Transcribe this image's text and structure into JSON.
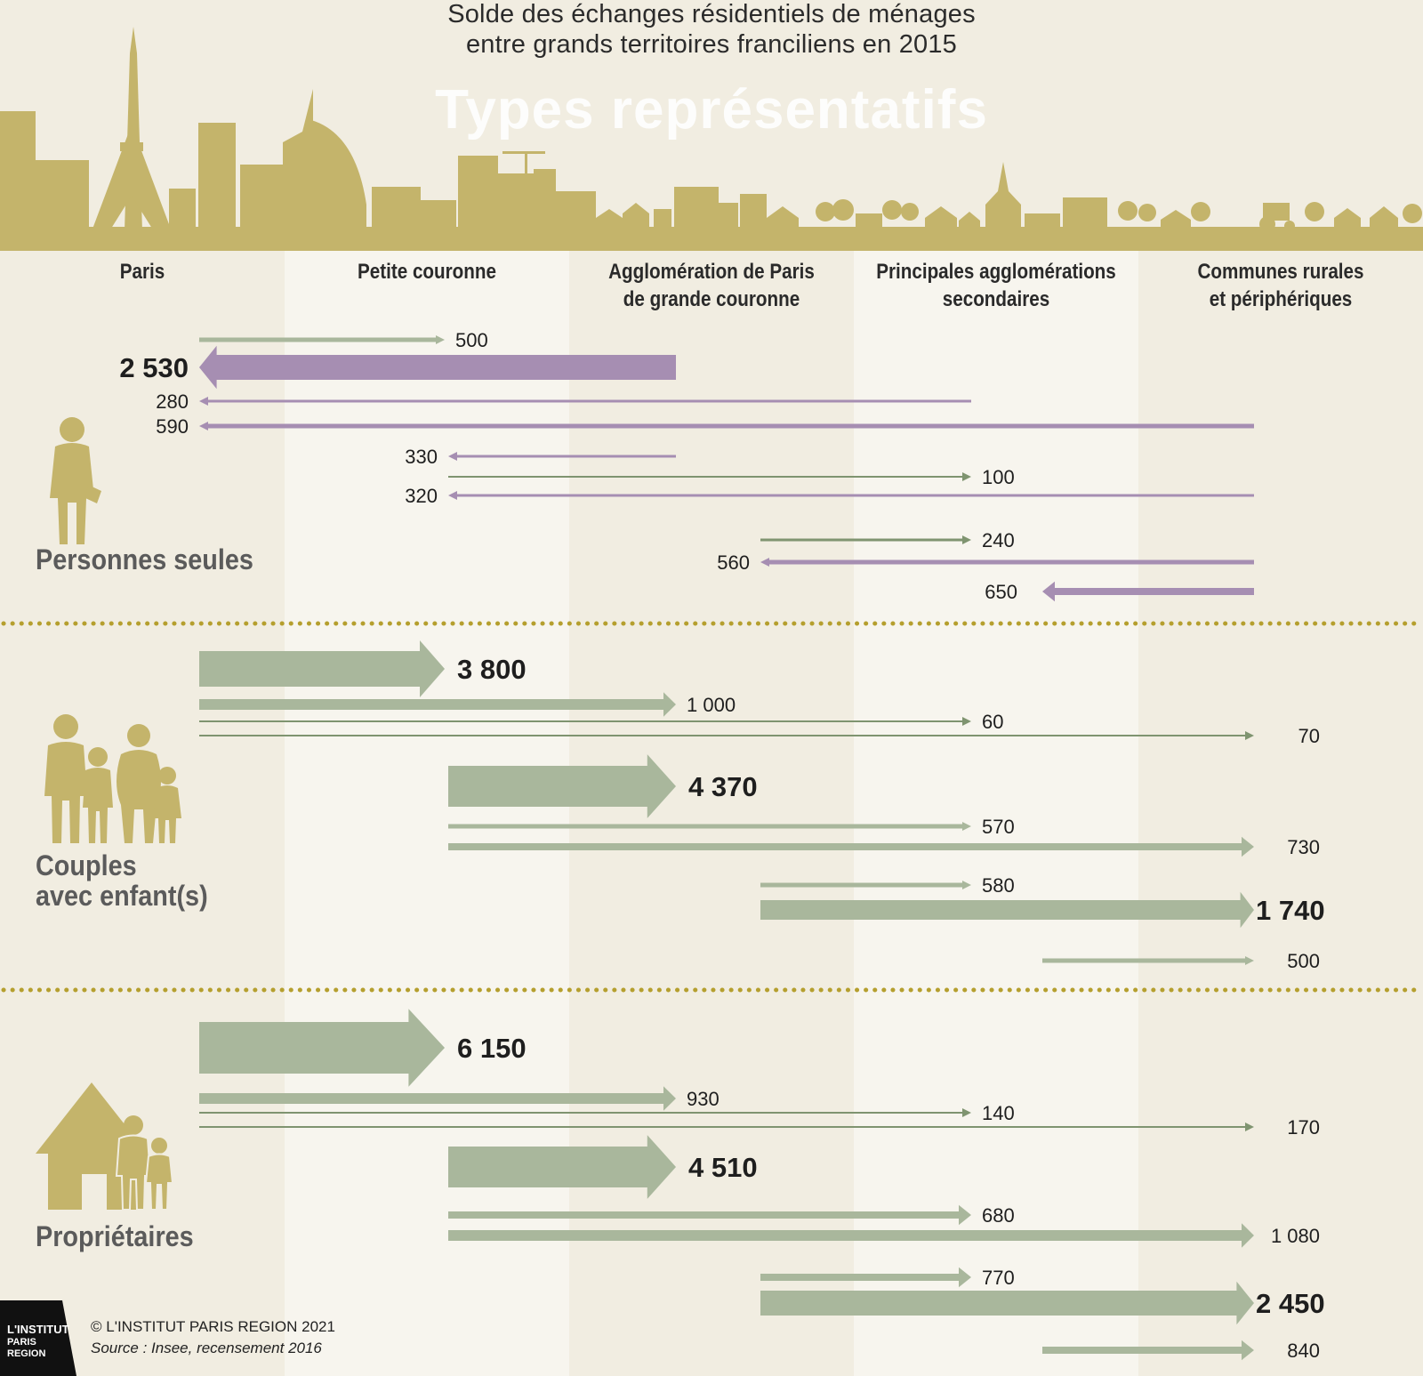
{
  "header": {
    "title_line1": "Solde des échanges résidentiels de ménages",
    "title_line2": "entre grands territoires franciliens en 2015",
    "big_title": "Types représentatifs"
  },
  "columns": [
    {
      "line1": "Paris",
      "line2": ""
    },
    {
      "line1": "Petite couronne",
      "line2": ""
    },
    {
      "line1": "Agglomération de Paris",
      "line2": "de grande couronne"
    },
    {
      "line1": "Principales agglomérations",
      "line2": "secondaires"
    },
    {
      "line1": "Communes rurales",
      "line2": "et périphériques"
    }
  ],
  "categories": {
    "seules": "Personnes seules",
    "couples_1": "Couples",
    "couples_2": "avec enfant(s)",
    "proprietaires": "Propriétaires"
  },
  "footer": {
    "copyright": "© L'INSTITUT PARIS REGION 2021",
    "source": "Source : Insee, recensement 2016",
    "logo_line1": "L'INSTITUT",
    "logo_line2": "PARIS",
    "logo_line3": "REGION"
  },
  "colors": {
    "background": "#f1ede1",
    "band_light": "#f7f5ee",
    "skyline": "#c4b46b",
    "arrow_green": "#a9b79c",
    "arrow_green_thin": "#7f9470",
    "arrow_purple": "#a68eb2",
    "separator": "#b59f2e"
  },
  "chart_data": {
    "type": "flow-arrows",
    "territories": [
      "Paris",
      "Petite couronne",
      "Agglomération de Paris de grande couronne",
      "Principales agglomérations secondaires",
      "Communes rurales et périphériques"
    ],
    "groups": [
      {
        "name": "Personnes seules",
        "flows": [
          {
            "from": 0,
            "to": 1,
            "value": 500,
            "label": "500"
          },
          {
            "from": 2,
            "to": 0,
            "value": 2530,
            "label": "2 530"
          },
          {
            "from": 3,
            "to": 0,
            "value": 280,
            "label": "280"
          },
          {
            "from": 4,
            "to": 0,
            "value": 590,
            "label": "590"
          },
          {
            "from": 2,
            "to": 1,
            "value": 330,
            "label": "330"
          },
          {
            "from": 1,
            "to": 3,
            "value": 100,
            "label": "100"
          },
          {
            "from": 4,
            "to": 1,
            "value": 320,
            "label": "320"
          },
          {
            "from": 2,
            "to": 3,
            "value": 240,
            "label": "240"
          },
          {
            "from": 4,
            "to": 2,
            "value": 560,
            "label": "560"
          },
          {
            "from": 4,
            "to": 3,
            "value": 650,
            "label": "650"
          }
        ]
      },
      {
        "name": "Couples avec enfant(s)",
        "flows": [
          {
            "from": 0,
            "to": 1,
            "value": 3800,
            "label": "3 800"
          },
          {
            "from": 0,
            "to": 2,
            "value": 1000,
            "label": "1 000"
          },
          {
            "from": 0,
            "to": 3,
            "value": 60,
            "label": "60"
          },
          {
            "from": 0,
            "to": 4,
            "value": 70,
            "label": "70"
          },
          {
            "from": 1,
            "to": 2,
            "value": 4370,
            "label": "4 370"
          },
          {
            "from": 1,
            "to": 3,
            "value": 570,
            "label": "570"
          },
          {
            "from": 1,
            "to": 4,
            "value": 730,
            "label": "730"
          },
          {
            "from": 2,
            "to": 3,
            "value": 580,
            "label": "580"
          },
          {
            "from": 2,
            "to": 4,
            "value": 1740,
            "label": "1 740"
          },
          {
            "from": 3,
            "to": 4,
            "value": 500,
            "label": "500"
          }
        ]
      },
      {
        "name": "Propriétaires",
        "flows": [
          {
            "from": 0,
            "to": 1,
            "value": 6150,
            "label": "6 150"
          },
          {
            "from": 0,
            "to": 2,
            "value": 930,
            "label": "930"
          },
          {
            "from": 0,
            "to": 3,
            "value": 140,
            "label": "140"
          },
          {
            "from": 0,
            "to": 4,
            "value": 170,
            "label": "170"
          },
          {
            "from": 1,
            "to": 2,
            "value": 4510,
            "label": "4 510"
          },
          {
            "from": 1,
            "to": 3,
            "value": 680,
            "label": "680"
          },
          {
            "from": 1,
            "to": 4,
            "value": 1080,
            "label": "1 080"
          },
          {
            "from": 2,
            "to": 3,
            "value": 770,
            "label": "770"
          },
          {
            "from": 2,
            "to": 4,
            "value": 2450,
            "label": "2 450"
          },
          {
            "from": 3,
            "to": 4,
            "value": 840,
            "label": "840"
          }
        ]
      }
    ]
  }
}
